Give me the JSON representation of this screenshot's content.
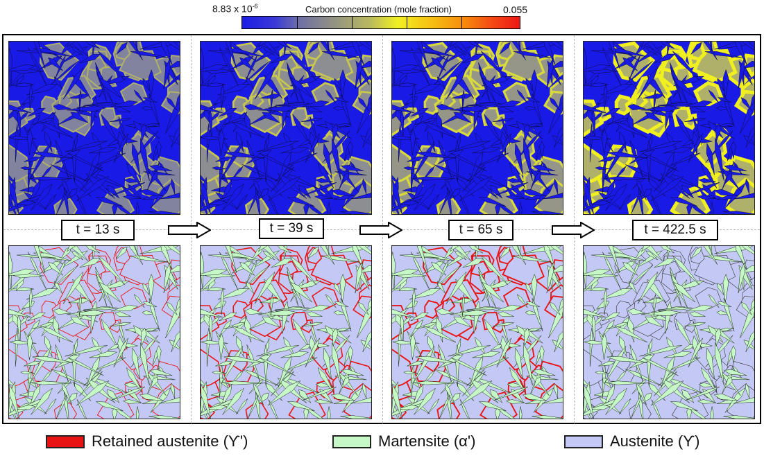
{
  "colorbar": {
    "min_label": "8.83 x 10",
    "min_exp": "-6",
    "title": "Carbon concentration (mole fraction)",
    "max_label": "0.055"
  },
  "time_labels": [
    "t = 13 s",
    "t = 39 s",
    "t = 65 s",
    "t = 422.5 s"
  ],
  "legend": {
    "retained_label": "Retained austenite (ϒ')",
    "martensite_label": "Martensite (α')",
    "austenite_label": "Austenite (ϒ)"
  },
  "colors": {
    "retained_austenite": "#e81414",
    "martensite": "#c6f7c6",
    "austenite": "#c4c8f4",
    "carbon_low": "#1a1ae6",
    "carbon_mid": "#7a7ca6",
    "carbon_high": "#f0f020"
  },
  "diffusion_level": [
    0.15,
    0.35,
    0.5,
    1.0
  ],
  "retained_level": [
    0.2,
    0.6,
    0.8,
    0.0
  ]
}
